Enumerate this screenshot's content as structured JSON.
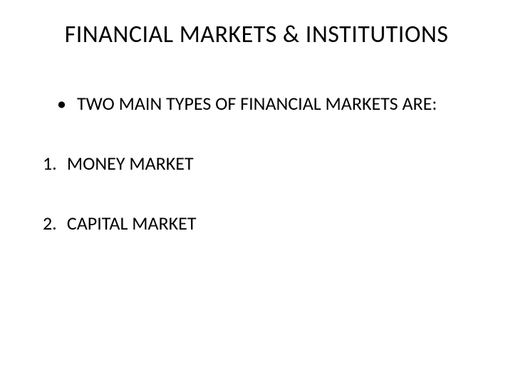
{
  "slide": {
    "title": "FINANCIAL MARKETS & INSTITUTIONS",
    "bullet_text": "TWO MAIN TYPES OF FINANCIAL MARKETS ARE:",
    "items": [
      {
        "num": "1.",
        "text": "MONEY MARKET"
      },
      {
        "num": "2.",
        "text": "CAPITAL MARKET"
      }
    ],
    "background_color": "#ffffff",
    "text_color": "#000000",
    "title_fontsize": 34,
    "body_fontsize": 26
  }
}
